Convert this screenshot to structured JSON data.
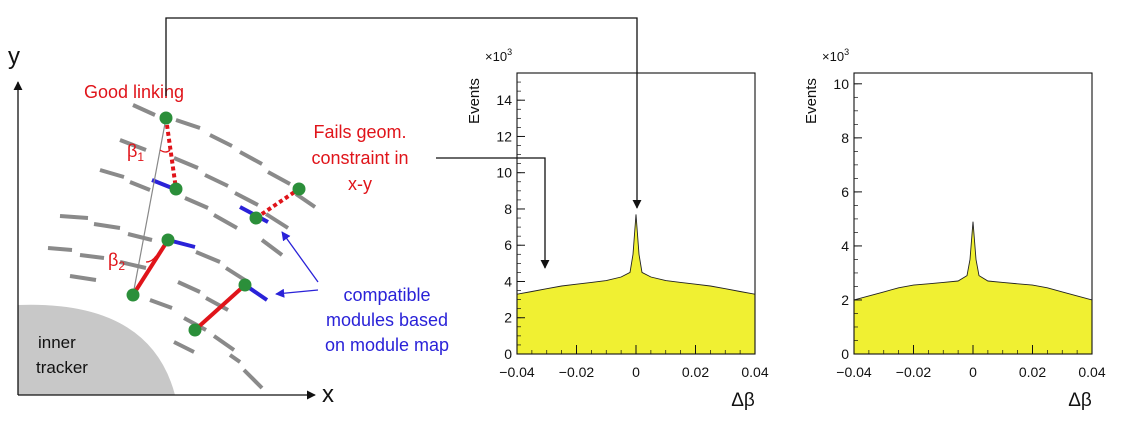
{
  "sketch": {
    "y_axis_label": "y",
    "x_axis_label": "x",
    "good_linking": "Good linking",
    "fails_line1": "Fails geom.",
    "fails_line2": "constraint in",
    "fails_line3": "x-y",
    "beta1_base": "β",
    "beta1_sub": "1",
    "beta2_base": "β",
    "beta2_sub": "2",
    "compat_line1": "compatible",
    "compat_line2": "modules based",
    "compat_line3": "on module map",
    "inner_line1": "inner",
    "inner_line2": "tracker"
  },
  "chart_data": [
    {
      "type": "area",
      "title": "",
      "xlabel": "Δβ",
      "ylabel": "Events",
      "y_multiplier": "×10",
      "y_multiplier_exp": "3",
      "xlim": [
        -0.04,
        0.04
      ],
      "ylim": [
        0,
        15.5
      ],
      "x_ticks": [
        "−0.04",
        "−0.02",
        "0",
        "0.02",
        "0.04"
      ],
      "y_ticks": [
        "0",
        "2",
        "4",
        "6",
        "8",
        "10",
        "12",
        "14"
      ],
      "fill_color": "#f0f032",
      "x": [
        -0.04,
        -0.035,
        -0.03,
        -0.025,
        -0.02,
        -0.015,
        -0.01,
        -0.005,
        -0.002,
        -0.001,
        0,
        0.001,
        0.002,
        0.005,
        0.01,
        0.015,
        0.02,
        0.025,
        0.03,
        0.035,
        0.04
      ],
      "values": [
        3.3,
        3.45,
        3.6,
        3.75,
        3.85,
        3.95,
        4.05,
        4.25,
        4.5,
        5.5,
        7.7,
        5.5,
        4.5,
        4.25,
        4.05,
        3.95,
        3.85,
        3.75,
        3.6,
        3.45,
        3.3
      ]
    },
    {
      "type": "area",
      "title": "",
      "xlabel": "Δβ",
      "ylabel": "Events",
      "y_multiplier": "×10",
      "y_multiplier_exp": "3",
      "xlim": [
        -0.04,
        0.04
      ],
      "ylim": [
        0,
        10.4
      ],
      "x_ticks": [
        "−0.04",
        "−0.02",
        "0",
        "0.02",
        "0.04"
      ],
      "y_ticks": [
        "0",
        "2",
        "4",
        "6",
        "8",
        "10"
      ],
      "fill_color": "#f0f032",
      "x": [
        -0.04,
        -0.035,
        -0.03,
        -0.025,
        -0.02,
        -0.015,
        -0.01,
        -0.005,
        -0.002,
        -0.001,
        0,
        0.001,
        0.002,
        0.005,
        0.01,
        0.015,
        0.02,
        0.025,
        0.03,
        0.035,
        0.04
      ],
      "values": [
        2.0,
        2.15,
        2.3,
        2.45,
        2.55,
        2.6,
        2.65,
        2.7,
        2.9,
        3.5,
        4.9,
        3.5,
        2.9,
        2.7,
        2.65,
        2.6,
        2.55,
        2.45,
        2.3,
        2.15,
        2.0
      ]
    }
  ]
}
